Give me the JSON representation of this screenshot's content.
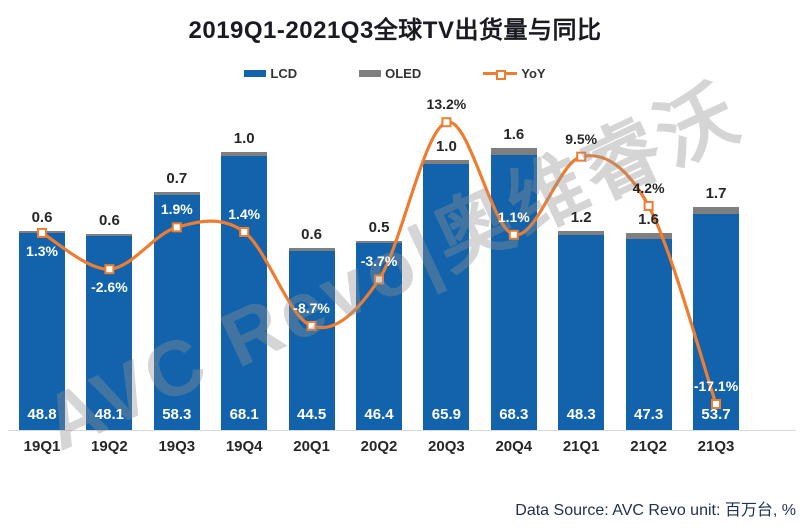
{
  "title": "2019Q1-2021Q3全球TV出货量与同比",
  "legend": [
    {
      "label": "LCD",
      "type": "bar",
      "color": "#1263AC"
    },
    {
      "label": "OLED",
      "type": "bar",
      "color": "#7F7F7F"
    },
    {
      "label": "YoY",
      "type": "line",
      "color": "#ED7D31"
    }
  ],
  "watermark": "AVC Revo|奥维睿沃",
  "footer": {
    "source_text": "Data Source:  AVC Revo  unit: 百万台, %"
  },
  "colors": {
    "lcd": "#1263AC",
    "oled": "#7F7F7F",
    "yoy": "#ED7D31",
    "axis": "#D9D9D9",
    "label_dark": "#262626",
    "label_white": "#FFFFFF"
  },
  "chart_data": {
    "type": "bar",
    "subtype": "stacked-bar-with-line",
    "title": "2019Q1-2021Q3全球TV出货量与同比",
    "unit": "百万台, %",
    "categories": [
      "19Q1",
      "19Q2",
      "19Q3",
      "19Q4",
      "20Q1",
      "20Q2",
      "20Q3",
      "20Q4",
      "21Q1",
      "21Q2",
      "21Q3"
    ],
    "series": [
      {
        "name": "LCD",
        "type": "bar",
        "stack": "shipments",
        "axis": "primary",
        "values": [
          48.8,
          48.1,
          58.3,
          68.1,
          44.5,
          46.4,
          65.9,
          68.3,
          48.3,
          47.3,
          53.7
        ]
      },
      {
        "name": "OLED",
        "type": "bar",
        "stack": "shipments",
        "axis": "primary",
        "values": [
          0.6,
          0.6,
          0.7,
          1.0,
          0.6,
          0.5,
          1.0,
          1.6,
          1.2,
          1.6,
          1.7
        ]
      },
      {
        "name": "YoY",
        "type": "line",
        "axis": "secondary",
        "unit": "%",
        "smooth": true,
        "values": [
          1.3,
          -2.6,
          1.9,
          1.4,
          -8.7,
          -3.7,
          13.2,
          1.1,
          9.5,
          4.2,
          -17.1
        ]
      }
    ],
    "yoy_label_placement": [
      "below",
      "below",
      "above",
      "above",
      "above",
      "above",
      "above",
      "above",
      "above",
      "above",
      "above"
    ],
    "yoy_label_color": [
      "white",
      "white",
      "white",
      "white",
      "white",
      "white",
      "black",
      "white",
      "black",
      "black",
      "white"
    ],
    "legend_position": "top",
    "gridlines": false,
    "value_axes_visible": false
  }
}
